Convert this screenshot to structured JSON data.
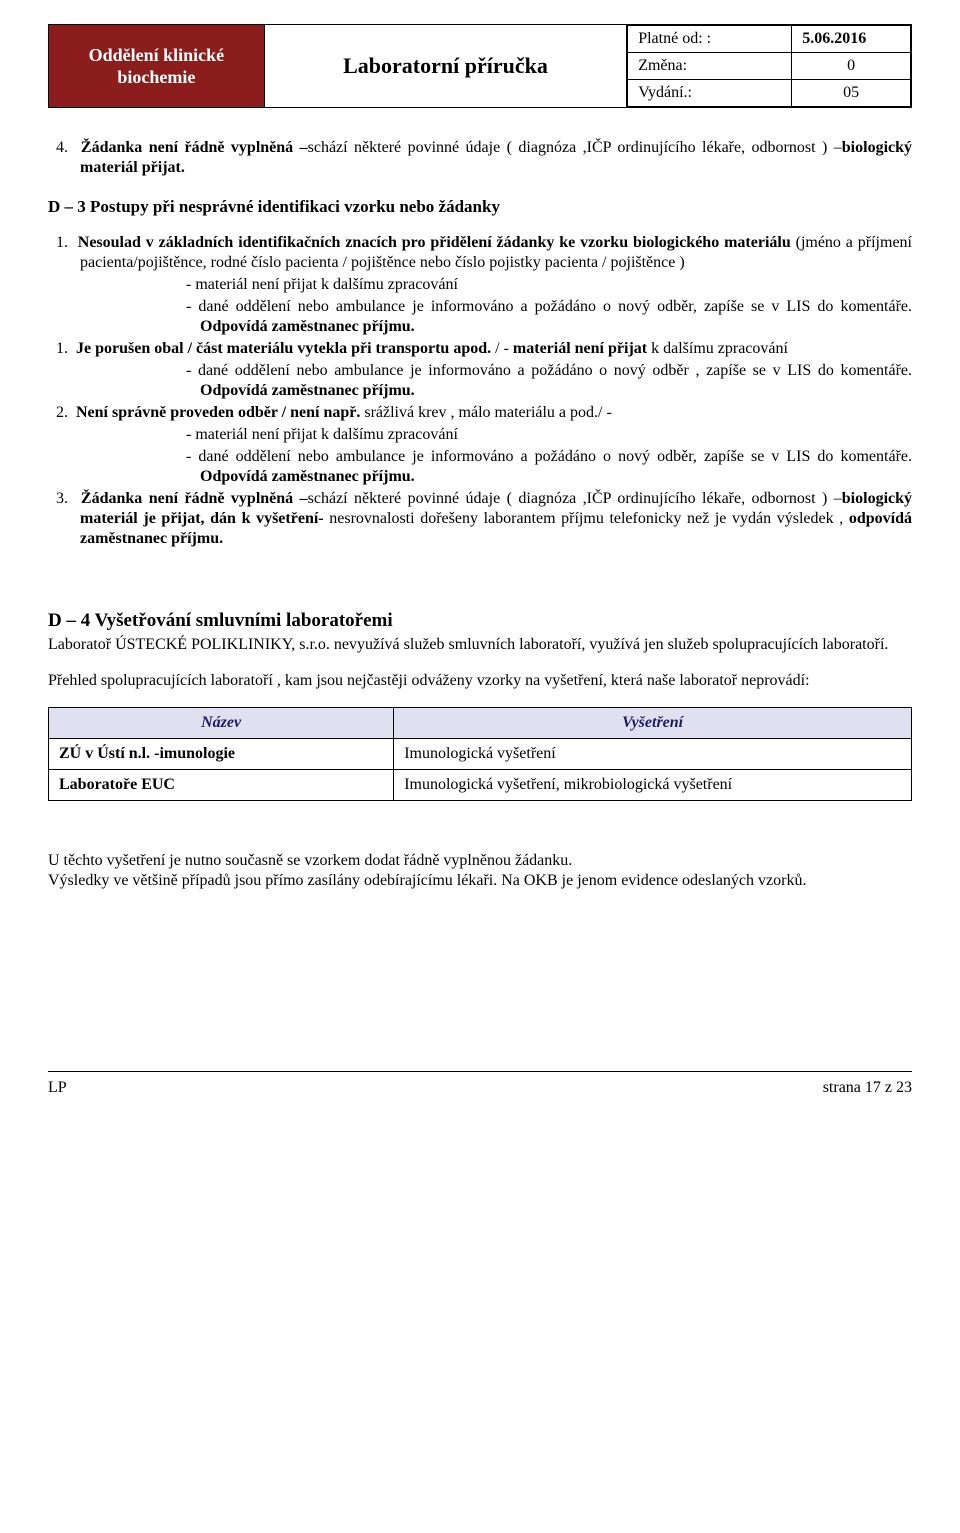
{
  "header": {
    "dept_line1": "Oddělení klinické",
    "dept_line2": "biochemie",
    "title": "Laboratorní příručka",
    "meta": {
      "valid_from_label": "Platné od:  :",
      "valid_from_value": "5.06.2016",
      "change_label": "Změna:",
      "change_value": "0",
      "edition_label": "Vydání.:",
      "edition_value": "05"
    }
  },
  "para4_num": "4.",
  "para4_pre": "Žádanka není řádně vyplněná –",
  "para4_mid": "schází  některé povinné údaje ( diagnóza ,IČP ordinujícího lékaře, odbornost ) –",
  "para4_post": "biologický materiál přijat.",
  "d3_heading": "D – 3 Postupy při nesprávné identifikaci vzorku nebo žádanky",
  "item1": {
    "num": "1.",
    "lead": "Nesoulad v základních identifikačních znacích pro přidělení žádanky ke vzorku biologického materiálu ",
    "rest": "(jméno a příjmení pacienta/pojištěnce, rodné číslo pacienta / pojištěnce nebo číslo pojistky pacienta / pojištěnce )",
    "sub_a": "-  materiál není přijat k dalšímu zpracování",
    "sub_b_pre": "-  dané oddělení nebo ambulance je informováno a požádáno o nový odběr, zapíše se v LIS do komentáře. ",
    "sub_b_bold": "Odpovídá zaměstnanec příjmu."
  },
  "item1b": {
    "num": "1.",
    "lead": "Je porušen  obal / část materiálu vytekla při transportu apod.",
    "rest_pre": " / -   ",
    "rest_bold": "materiál není přijat ",
    "rest_after": "k dalšímu zpracování",
    "sub_b_pre": "-  dané oddělení nebo ambulance je informováno a požádáno o nový odběr , zapíše se v LIS do komentáře. ",
    "sub_b_bold": "Odpovídá zaměstnanec příjmu."
  },
  "item2": {
    "num": "2.",
    "lead": "Není správně  proveden odběr / není např.",
    "rest": " srážlivá krev , málo materiálu a pod./ -",
    "sub_a": "-  materiál není přijat k dalšímu zpracování",
    "sub_b_pre": "-  dané oddělení nebo ambulance je informováno a požádáno o nový odběr, zapíše se v LIS do  komentáře. ",
    "sub_b_bold": "Odpovídá zaměstnanec příjmu."
  },
  "item3": {
    "num": "3.",
    "lead": "Žádanka není řádně vyplněná –",
    "mid": "schází  některé povinné údaje ( diagnóza ,IČP ordinujícího lékaře, odbornost ) –",
    "bold2": "biologický materiál  je přijat, dán k vyšetření-",
    "rest": " nesrovnalosti dořešeny laborantem  příjmu telefonicky než je vydán výsledek , ",
    "bold3": "odpovídá zaměstnanec příjmu."
  },
  "d4": {
    "heading": "D – 4 Vyšetřování smluvními laboratořemi",
    "p1": "Laboratoř  ÚSTECKÉ POLIKLINIKY, s.r.o. nevyužívá služeb smluvních laboratoří, využívá jen služeb spolupracujících laboratoří.",
    "p2": "Přehled spolupracujících laboratoří , kam  jsou nejčastěji odváženy vzorky na vyšetření, která naše laboratoř neprovádí:"
  },
  "lab_table": {
    "header_bg": "#e0e0f0",
    "header_color": "#1a1a66",
    "columns": [
      "Název",
      "Vyšetření"
    ],
    "rows": [
      {
        "name": "ZÚ v Ústí n.l. -imunologie",
        "exam": "Imunologická vyšetření"
      },
      {
        "name": "Laboratoře EUC",
        "exam": "Imunologická vyšetření, mikrobiologická vyšetření"
      }
    ]
  },
  "after_table": {
    "p1": "U těchto vyšetření je nutno současně se vzorkem dodat řádně vyplněnou žádanku.",
    "p2": "Výsledky ve většině případů jsou přímo  zasílány  odebírajícímu lékaři. Na OKB je jenom evidence odeslaných  vzorků."
  },
  "footer": {
    "left": "LP",
    "right": "strana 17 z 23"
  }
}
